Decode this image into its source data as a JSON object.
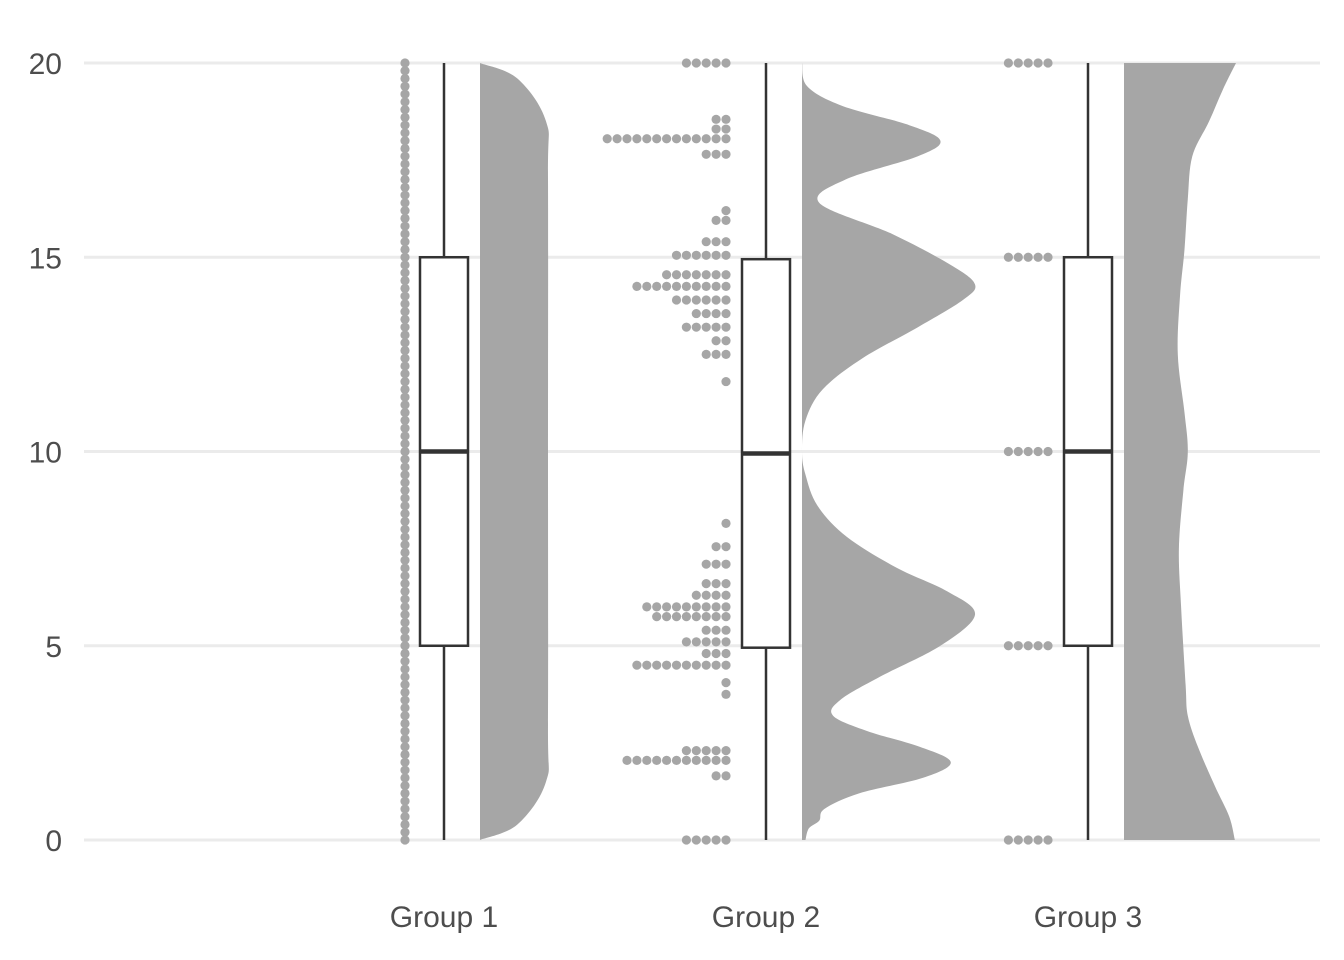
{
  "chart_data": {
    "type": "raincloud",
    "title": "",
    "xlabel": "",
    "ylabel": "",
    "ylim": [
      0,
      20
    ],
    "yticks": [
      0,
      5,
      10,
      15,
      20
    ],
    "grid": "horizontal",
    "legend": "none",
    "colors": {
      "cloud": "#a6a6a6",
      "dots": "#a6a6a6",
      "box_stroke": "#333333",
      "box_fill": "#ffffff",
      "grid": "#ebebeb",
      "text": "#4d4d4d"
    },
    "categories": [
      "Group 1",
      "Group 2",
      "Group 3"
    ],
    "groups": [
      {
        "label": "Group 1",
        "box": {
          "min": 0,
          "q1": 5,
          "median": 10,
          "q3": 15,
          "max": 20
        },
        "density": [
          [
            0,
            0.0
          ],
          [
            0.4,
            0.55
          ],
          [
            1.5,
            0.97
          ],
          [
            3,
            1.0
          ],
          [
            10,
            1.0
          ],
          [
            17,
            1.0
          ],
          [
            18.5,
            0.97
          ],
          [
            19.6,
            0.55
          ],
          [
            20,
            0.0
          ]
        ],
        "dot_rows": [
          [
            0.0,
            1
          ],
          [
            0.2,
            1
          ],
          [
            0.4,
            1
          ],
          [
            0.6,
            1
          ],
          [
            0.8,
            1
          ],
          [
            1.0,
            1
          ],
          [
            1.2,
            1
          ],
          [
            1.4,
            1
          ],
          [
            1.6,
            1
          ],
          [
            1.8,
            1
          ],
          [
            2.0,
            1
          ],
          [
            2.2,
            1
          ],
          [
            2.4,
            1
          ],
          [
            2.6,
            1
          ],
          [
            2.8,
            1
          ],
          [
            3.0,
            1
          ],
          [
            3.2,
            1
          ],
          [
            3.4,
            1
          ],
          [
            3.6,
            1
          ],
          [
            3.8,
            1
          ],
          [
            4.0,
            1
          ],
          [
            4.2,
            1
          ],
          [
            4.4,
            1
          ],
          [
            4.6,
            1
          ],
          [
            4.8,
            1
          ],
          [
            5.0,
            1
          ],
          [
            5.2,
            1
          ],
          [
            5.4,
            1
          ],
          [
            5.6,
            1
          ],
          [
            5.8,
            1
          ],
          [
            6.0,
            1
          ],
          [
            6.2,
            1
          ],
          [
            6.4,
            1
          ],
          [
            6.6,
            1
          ],
          [
            6.8,
            1
          ],
          [
            7.0,
            1
          ],
          [
            7.2,
            1
          ],
          [
            7.4,
            1
          ],
          [
            7.6,
            1
          ],
          [
            7.8,
            1
          ],
          [
            8.0,
            1
          ],
          [
            8.2,
            1
          ],
          [
            8.4,
            1
          ],
          [
            8.6,
            1
          ],
          [
            8.8,
            1
          ],
          [
            9.0,
            1
          ],
          [
            9.2,
            1
          ],
          [
            9.4,
            1
          ],
          [
            9.6,
            1
          ],
          [
            9.8,
            1
          ],
          [
            10.0,
            1
          ],
          [
            10.2,
            1
          ],
          [
            10.4,
            1
          ],
          [
            10.6,
            1
          ],
          [
            10.8,
            1
          ],
          [
            11.0,
            1
          ],
          [
            11.2,
            1
          ],
          [
            11.4,
            1
          ],
          [
            11.6,
            1
          ],
          [
            11.8,
            1
          ],
          [
            12.0,
            1
          ],
          [
            12.2,
            1
          ],
          [
            12.4,
            1
          ],
          [
            12.6,
            1
          ],
          [
            12.8,
            1
          ],
          [
            13.0,
            1
          ],
          [
            13.2,
            1
          ],
          [
            13.4,
            1
          ],
          [
            13.6,
            1
          ],
          [
            13.8,
            1
          ],
          [
            14.0,
            1
          ],
          [
            14.2,
            1
          ],
          [
            14.4,
            1
          ],
          [
            14.6,
            1
          ],
          [
            14.8,
            1
          ],
          [
            15.0,
            1
          ],
          [
            15.2,
            1
          ],
          [
            15.4,
            1
          ],
          [
            15.6,
            1
          ],
          [
            15.8,
            1
          ],
          [
            16.0,
            1
          ],
          [
            16.2,
            1
          ],
          [
            16.4,
            1
          ],
          [
            16.6,
            1
          ],
          [
            16.8,
            1
          ],
          [
            17.0,
            1
          ],
          [
            17.2,
            1
          ],
          [
            17.4,
            1
          ],
          [
            17.6,
            1
          ],
          [
            17.8,
            1
          ],
          [
            18.0,
            1
          ],
          [
            18.2,
            1
          ],
          [
            18.4,
            1
          ],
          [
            18.6,
            1
          ],
          [
            18.8,
            1
          ],
          [
            19.0,
            1
          ],
          [
            19.2,
            1
          ],
          [
            19.4,
            1
          ],
          [
            19.6,
            1
          ],
          [
            19.8,
            1
          ],
          [
            20.0,
            1
          ]
        ]
      },
      {
        "label": "Group 2",
        "box": {
          "min": 0,
          "q1": 4.95,
          "median": 9.95,
          "q3": 14.95,
          "max": 20
        },
        "density": [
          [
            0,
            0.02
          ],
          [
            0.3,
            0.04
          ],
          [
            0.5,
            0.1
          ],
          [
            0.8,
            0.13
          ],
          [
            1.2,
            0.33
          ],
          [
            1.6,
            0.7
          ],
          [
            2.0,
            0.86
          ],
          [
            2.4,
            0.68
          ],
          [
            2.8,
            0.38
          ],
          [
            3.2,
            0.18
          ],
          [
            3.6,
            0.22
          ],
          [
            4.2,
            0.45
          ],
          [
            5.0,
            0.8
          ],
          [
            5.8,
            1.0
          ],
          [
            6.4,
            0.84
          ],
          [
            7.0,
            0.55
          ],
          [
            7.8,
            0.26
          ],
          [
            8.6,
            0.09
          ],
          [
            9.4,
            0.02
          ],
          [
            10.0,
            0.0
          ],
          [
            10.8,
            0.02
          ],
          [
            11.6,
            0.12
          ],
          [
            12.4,
            0.35
          ],
          [
            13.2,
            0.67
          ],
          [
            13.9,
            0.93
          ],
          [
            14.3,
            1.0
          ],
          [
            14.8,
            0.86
          ],
          [
            15.6,
            0.52
          ],
          [
            16.4,
            0.1
          ],
          [
            17.0,
            0.25
          ],
          [
            17.6,
            0.67
          ],
          [
            18.0,
            0.8
          ],
          [
            18.4,
            0.62
          ],
          [
            18.9,
            0.23
          ],
          [
            19.4,
            0.03
          ],
          [
            20,
            0.0
          ]
        ],
        "dot_rows": [
          [
            0.0,
            5
          ],
          [
            1.65,
            2
          ],
          [
            2.05,
            11
          ],
          [
            2.3,
            5
          ],
          [
            3.75,
            1
          ],
          [
            4.05,
            1
          ],
          [
            4.5,
            10
          ],
          [
            4.8,
            3
          ],
          [
            5.1,
            5
          ],
          [
            5.4,
            3
          ],
          [
            5.75,
            8
          ],
          [
            6.0,
            9
          ],
          [
            6.3,
            4
          ],
          [
            6.6,
            3
          ],
          [
            7.1,
            3
          ],
          [
            7.55,
            2
          ],
          [
            8.15,
            1
          ],
          [
            11.8,
            1
          ],
          [
            12.5,
            3
          ],
          [
            12.85,
            2
          ],
          [
            13.2,
            5
          ],
          [
            13.55,
            4
          ],
          [
            13.9,
            6
          ],
          [
            14.25,
            10
          ],
          [
            14.55,
            7
          ],
          [
            15.05,
            6
          ],
          [
            15.4,
            3
          ],
          [
            15.95,
            2
          ],
          [
            16.2,
            1
          ],
          [
            17.65,
            3
          ],
          [
            18.05,
            13
          ],
          [
            18.3,
            2
          ],
          [
            18.55,
            2
          ],
          [
            20.0,
            5
          ]
        ]
      },
      {
        "label": "Group 3",
        "box": {
          "min": 0,
          "q1": 5,
          "median": 10,
          "q3": 15,
          "max": 20
        },
        "density": [
          [
            0,
            0.99
          ],
          [
            0.6,
            0.94
          ],
          [
            1.4,
            0.81
          ],
          [
            2.4,
            0.66
          ],
          [
            3.2,
            0.57
          ],
          [
            4.0,
            0.55
          ],
          [
            6.0,
            0.51
          ],
          [
            7.5,
            0.49
          ],
          [
            9.0,
            0.53
          ],
          [
            10.0,
            0.57
          ],
          [
            11.0,
            0.54
          ],
          [
            12.5,
            0.48
          ],
          [
            14.0,
            0.5
          ],
          [
            15.2,
            0.54
          ],
          [
            16.5,
            0.57
          ],
          [
            17.6,
            0.61
          ],
          [
            18.5,
            0.76
          ],
          [
            19.3,
            0.88
          ],
          [
            20,
            1.0
          ]
        ],
        "dot_rows": [
          [
            0,
            5
          ],
          [
            5,
            5
          ],
          [
            10,
            5
          ],
          [
            15,
            5
          ],
          [
            20,
            5
          ]
        ]
      }
    ]
  }
}
